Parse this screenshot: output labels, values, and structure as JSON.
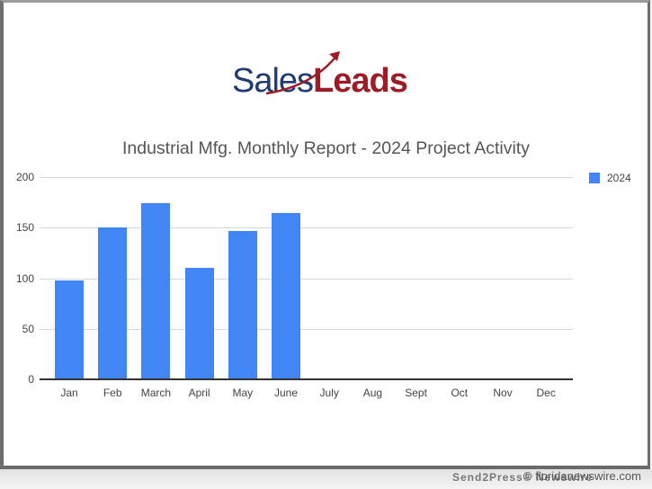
{
  "logo": {
    "part1": "Sales",
    "part2": "Leads",
    "colors": {
      "sales": "#1f3b70",
      "leads": "#9c1d26"
    }
  },
  "chart_data": {
    "type": "bar",
    "title": "Industrial Mfg. Monthly Report - 2024 Project Activity",
    "xlabel": "",
    "ylabel": "",
    "ylim": [
      0,
      200
    ],
    "yticks": [
      "0",
      "50",
      "100",
      "150",
      "200"
    ],
    "grid": true,
    "legend_position": "right",
    "categories": [
      "Jan",
      "Feb",
      "March",
      "April",
      "May",
      "June",
      "July",
      "Aug",
      "Sept",
      "Oct",
      "Nov",
      "Dec"
    ],
    "series": [
      {
        "name": "2024",
        "color": "#4285f4",
        "values": [
          97,
          150,
          174,
          110,
          146,
          164,
          null,
          null,
          null,
          null,
          null,
          null
        ]
      }
    ]
  },
  "legend": {
    "label": "2024"
  },
  "watermark": {
    "send2press": "Send2Press® Newswire",
    "site": "© floridanewswire.com"
  }
}
